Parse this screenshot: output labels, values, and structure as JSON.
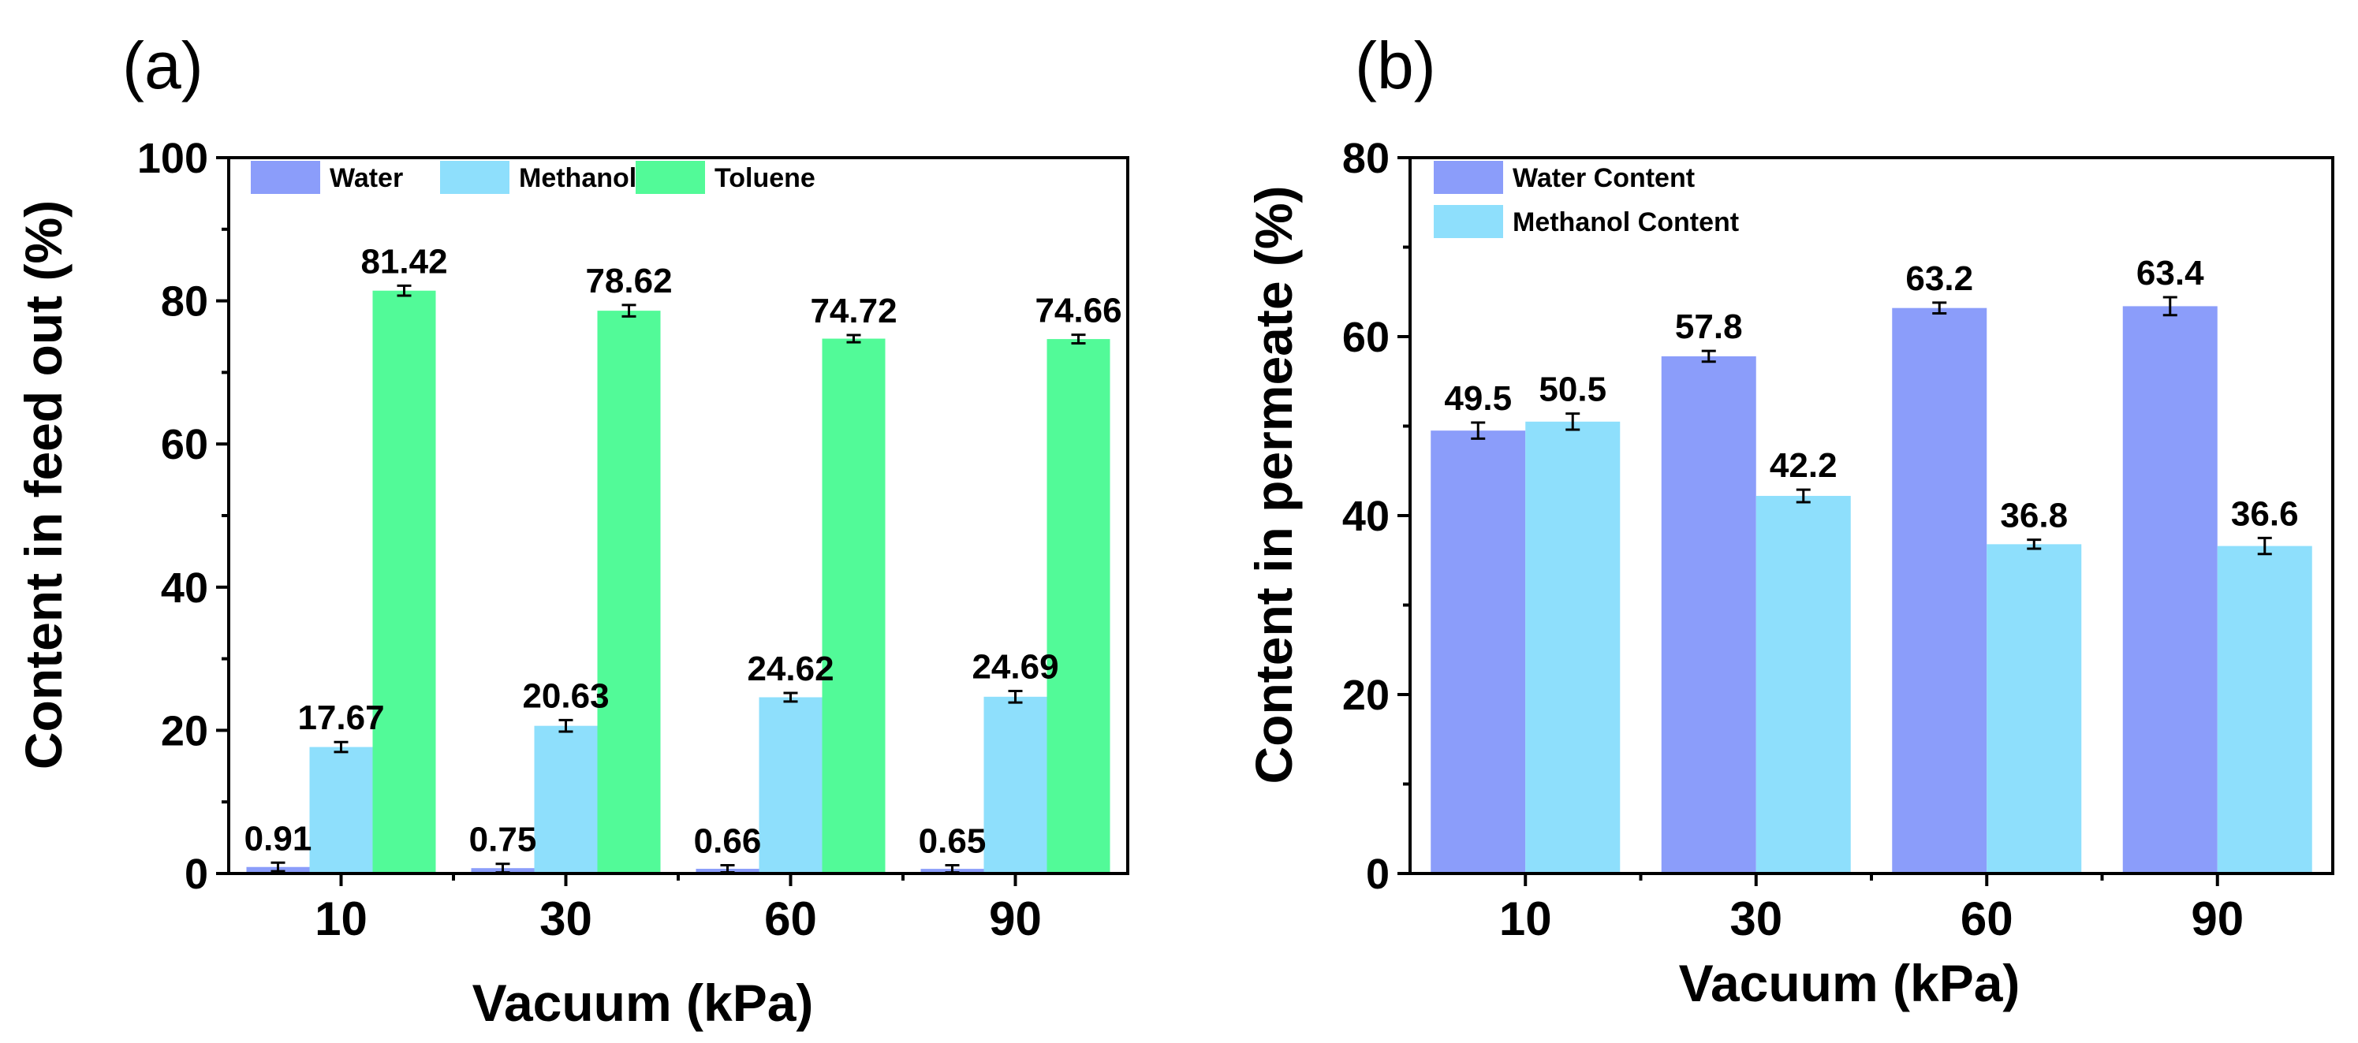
{
  "chart_data": [
    {
      "panel_label": "(a)",
      "type": "bar",
      "categories": [
        "10",
        "30",
        "60",
        "90"
      ],
      "series": [
        {
          "name": "Water",
          "color": "#8b9dfa",
          "values": [
            0.91,
            0.75,
            0.66,
            0.65
          ],
          "labels": [
            "0.91",
            "0.75",
            "0.66",
            "0.65"
          ],
          "errors": [
            0.6,
            0.6,
            0.5,
            0.5
          ]
        },
        {
          "name": "Methanol",
          "color": "#8edffc",
          "values": [
            17.67,
            20.63,
            24.62,
            24.69
          ],
          "labels": [
            "17.67",
            "20.63",
            "24.62",
            "24.69"
          ],
          "errors": [
            0.7,
            0.8,
            0.6,
            0.8
          ]
        },
        {
          "name": "Toluene",
          "color": "#52fa98",
          "values": [
            81.42,
            78.62,
            74.72,
            74.66
          ],
          "labels": [
            "81.42",
            "78.62",
            "74.72",
            "74.66"
          ],
          "errors": [
            0.7,
            0.8,
            0.5,
            0.6
          ]
        }
      ],
      "xlabel": "Vacuum (kPa)",
      "ylabel": "Content in feed out (%)",
      "ylim": [
        0,
        100
      ],
      "yticks": [
        0,
        20,
        40,
        60,
        80,
        100
      ],
      "legend_position": "top-left"
    },
    {
      "panel_label": "(b)",
      "type": "bar",
      "categories": [
        "10",
        "30",
        "60",
        "90"
      ],
      "series": [
        {
          "name": "Water Content",
          "color": "#8b9dfa",
          "values": [
            49.5,
            57.8,
            63.2,
            63.4
          ],
          "labels": [
            "49.5",
            "57.8",
            "63.2",
            "63.4"
          ],
          "errors": [
            0.9,
            0.6,
            0.6,
            1.0
          ]
        },
        {
          "name": "Methanol Content",
          "color": "#8edffc",
          "values": [
            50.5,
            42.2,
            36.8,
            36.6
          ],
          "labels": [
            "50.5",
            "42.2",
            "36.8",
            "36.6"
          ],
          "errors": [
            0.9,
            0.7,
            0.5,
            0.9
          ]
        }
      ],
      "xlabel": "Vacuum (kPa)",
      "ylabel": "Content in permeate (%)",
      "ylim": [
        0,
        80
      ],
      "yticks": [
        0,
        20,
        40,
        60,
        80
      ],
      "legend_position": "top-left"
    }
  ]
}
